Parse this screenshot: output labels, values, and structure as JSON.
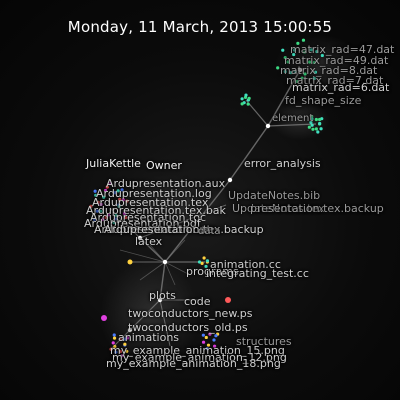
{
  "datetime": "Monday, 11 March, 2013 15:00:55",
  "colors": {
    "background": "#0a0a0a",
    "edge": "#8a8a8a",
    "node_green": "#3ddc84",
    "node_teal": "#40e0c0",
    "node_red": "#ff5a5a",
    "node_blue": "#4a7cff",
    "node_yellow": "#ffd23f",
    "node_magenta": "#e040e0"
  },
  "labels": {
    "matrix_top": "matrix_rad=47.dat",
    "matrix_2": "matrix_rad=49.dat",
    "matrix_3": "matrix_rad=8.dat",
    "matrix_4": "matrix_rad=7.dat",
    "matrix_5": "matrix_rad=6.dat",
    "fd_shape_size": "fd_shape_size",
    "element": "element",
    "error_analysis": "error_analysis",
    "julia_kettle": "JuliaKettle",
    "owner": "Owner",
    "latex_1": "Ardupresentation.aux",
    "latex_2": "Ardupresentation.log",
    "latex_3": "Ardupresentation.tex",
    "latex_4": "Ardupresentation.tex.bak",
    "latex_5": "Ardupresentation.toc",
    "latex_6": "Ardupresentation.pdf",
    "latex_7": "Ardupresentation.out",
    "latex_8": "Ardupresentation.tex.backup",
    "notes_bib": "UpdateNotes.bib",
    "notes_tex": "UpdateNotes.tex",
    "tex_backup": "presentation.tex.backup",
    "latex": "latex",
    "animation_cc": "animation.cc",
    "programs": "programs",
    "integrating_test": "integrating_test.cc",
    "plots": "plots",
    "code": "code",
    "two_conductors_new": "twoconductors_new.ps",
    "two_conductors_old": "twoconductors_old.ps",
    "animations": "animations",
    "structures": "structures",
    "my_example_1": "my_example_animation_15.png",
    "my_example_2": "my_example_animation_12.png",
    "my_example_3": "my_example_animation_18.png"
  }
}
